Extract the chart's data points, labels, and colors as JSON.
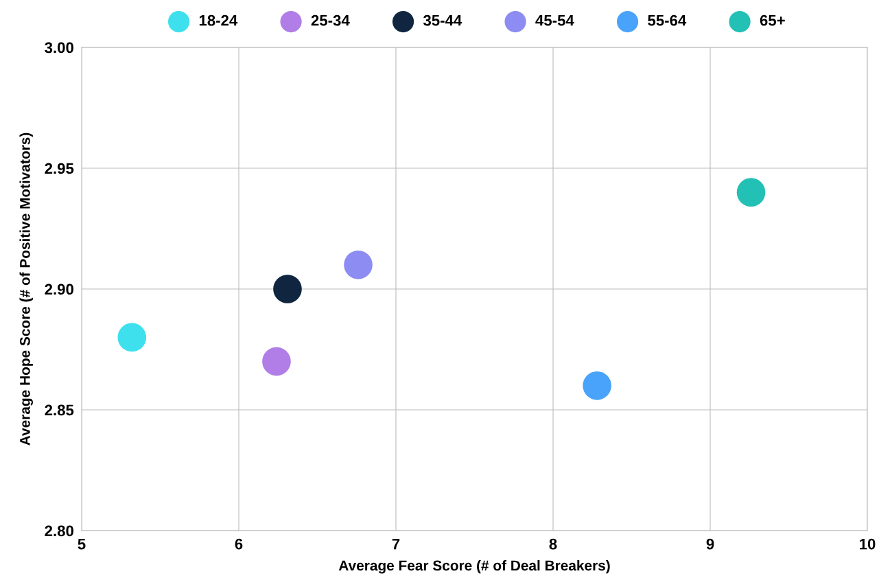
{
  "chart_data": {
    "type": "scatter",
    "xlabel": "Average Fear Score (# of Deal Breakers)",
    "ylabel": "Average Hope Score (# of Positive Motivators)",
    "xlim": [
      5,
      10
    ],
    "xticks": [
      5,
      6,
      7,
      8,
      9,
      10
    ],
    "ylim": [
      2.8,
      3.0
    ],
    "yticks": [
      {
        "value": 2.8,
        "label": "2.80"
      },
      {
        "value": 2.85,
        "label": "2.85"
      },
      {
        "value": 2.9,
        "label": "2.90"
      },
      {
        "value": 2.95,
        "label": "2.95"
      },
      {
        "value": 3.0,
        "label": "3.00"
      }
    ],
    "grid": true,
    "legend": "top",
    "marker": "circle",
    "series": [
      {
        "name": "18-24",
        "color": "#3ee0ee",
        "x": [
          5.32
        ],
        "values": [
          2.88
        ]
      },
      {
        "name": "25-34",
        "color": "#b07ee6",
        "x": [
          6.24
        ],
        "values": [
          2.87
        ]
      },
      {
        "name": "35-44",
        "color": "#0f2540",
        "x": [
          6.31
        ],
        "values": [
          2.9
        ]
      },
      {
        "name": "45-54",
        "color": "#8c8cf2",
        "x": [
          6.76
        ],
        "values": [
          2.91
        ]
      },
      {
        "name": "55-64",
        "color": "#4aa3fb",
        "x": [
          8.28
        ],
        "values": [
          2.86
        ]
      },
      {
        "name": "65+",
        "color": "#22c0b5",
        "x": [
          9.26
        ],
        "values": [
          2.94
        ]
      }
    ]
  }
}
